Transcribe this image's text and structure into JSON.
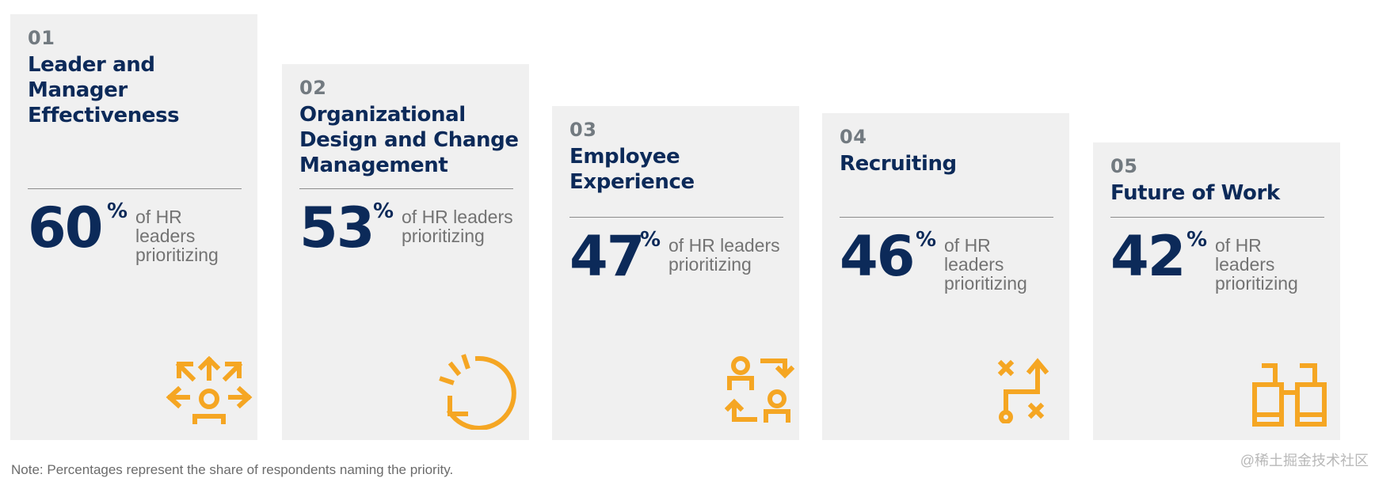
{
  "chart_data": {
    "type": "bar",
    "categories": [
      "Leader and Manager Effectiveness",
      "Organizational Design and Change Management",
      "Employee Experience",
      "Recruiting",
      "Future of Work"
    ],
    "values": [
      60,
      53,
      47,
      46,
      42
    ],
    "ylim": [
      0,
      100
    ]
  },
  "cards": [
    {
      "number": "01",
      "title_lines": [
        "Leader and",
        "Manager",
        "Effectiveness"
      ],
      "value": "60",
      "unit": "%",
      "desc_lines": [
        "of HR leaders",
        "prioritizing"
      ],
      "icon": "people-arrows-icon"
    },
    {
      "number": "02",
      "title_lines": [
        "Organizational",
        "Design and Change",
        "Management"
      ],
      "value": "53",
      "unit": "%",
      "desc_lines": [
        "of HR leaders",
        "prioritizing"
      ],
      "icon": "circular-arrow-icon"
    },
    {
      "number": "03",
      "title_lines": [
        "Employee",
        "Experience"
      ],
      "value": "47",
      "unit": "%",
      "desc_lines": [
        "of HR leaders",
        "prioritizing"
      ],
      "icon": "people-exchange-icon"
    },
    {
      "number": "04",
      "title_lines": [
        "Recruiting"
      ],
      "value": "46",
      "unit": "%",
      "desc_lines": [
        "of HR leaders",
        "prioritizing"
      ],
      "icon": "strategy-play-icon"
    },
    {
      "number": "05",
      "title_lines": [
        "Future of Work"
      ],
      "value": "42",
      "unit": "%",
      "desc_lines": [
        "of HR leaders",
        "prioritizing"
      ],
      "icon": "binoculars-icon"
    }
  ],
  "colors": {
    "navy": "#0c2a59",
    "gray_number": "#727a80",
    "accent": "#f5a623",
    "card_bg": "#f0f0f0"
  },
  "note": "Note: Percentages represent the share of respondents naming the priority.",
  "watermark": "@稀土掘金技术社区"
}
